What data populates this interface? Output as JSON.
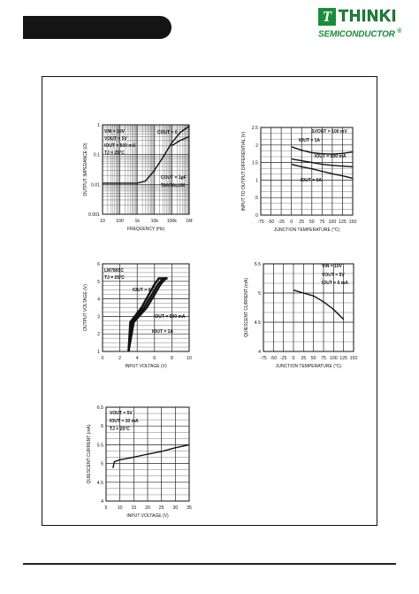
{
  "header": {
    "logo_text": "THINKI",
    "logo_sub": "SEMICONDUCTOR",
    "logo_reg": "®"
  },
  "chart_data": [
    {
      "id": "c1",
      "type": "line",
      "xlabel": "FREQUENCY (Hz)",
      "ylabel": "OUTPUT IMPEDANCE (Ω)",
      "xscale": "log",
      "yscale": "log",
      "xlim": [
        10,
        1000000
      ],
      "ylim": [
        0.001,
        1
      ],
      "xticks": [
        "10",
        "100",
        "1k",
        "10k",
        "100k",
        "1M"
      ],
      "yticks": [
        "0.001",
        "0.01",
        "0.1",
        "1"
      ],
      "grid": true,
      "annotations": [
        "VIN = 10V",
        "VOUT = 5V",
        "IOUT = 500 mA",
        "TJ = 25°C",
        "COUT = 0",
        "COUT = 1μF",
        "TANTALUM"
      ],
      "series": [
        {
          "x": [
            10,
            100,
            1000,
            3000,
            10000,
            30000,
            100000,
            300000,
            1000000
          ],
          "y": [
            0.011,
            0.011,
            0.011,
            0.013,
            0.03,
            0.08,
            0.25,
            0.55,
            0.9
          ]
        },
        {
          "x": [
            100000,
            300000,
            1000000
          ],
          "y": [
            0.2,
            0.3,
            0.4
          ]
        }
      ]
    },
    {
      "id": "c2",
      "type": "line",
      "xlabel": "JUNCTION TEMPERATURE (°C)",
      "ylabel": "INPUT TO OUTPUT DIFFERENTIAL (V)",
      "xlim": [
        -75,
        150
      ],
      "ylim": [
        0,
        2.5
      ],
      "xticks": [
        "-75",
        "-50",
        "-25",
        "0",
        "25",
        "50",
        "75",
        "100",
        "125",
        "150"
      ],
      "yticks": [
        "0",
        ".5",
        "1",
        "1.5",
        "2",
        "2.5"
      ],
      "grid": true,
      "annotations": [
        "ΔVOUT = 100 mV",
        "IOUT = 1A",
        "IOUT = 500 mA",
        "IOUT = 0A"
      ],
      "series": [
        {
          "name": "IOUT = 1A",
          "x": [
            0,
            25,
            50,
            75,
            100,
            125,
            150
          ],
          "y": [
            1.95,
            1.85,
            1.78,
            1.75,
            1.74,
            1.76,
            1.8
          ]
        },
        {
          "name": "IOUT = 500 mA",
          "x": [
            0,
            25,
            50,
            75,
            100,
            125,
            150
          ],
          "y": [
            1.6,
            1.55,
            1.5,
            1.45,
            1.42,
            1.4,
            1.38
          ]
        },
        {
          "name": "IOUT = 0A",
          "x": [
            0,
            25,
            50,
            75,
            100,
            125,
            150
          ],
          "y": [
            1.45,
            1.38,
            1.32,
            1.25,
            1.18,
            1.12,
            1.05
          ]
        }
      ]
    },
    {
      "id": "c3",
      "type": "line",
      "xlabel": "INPUT VOLTAGE (V)",
      "ylabel": "OUTPUT VOLTAGE (V)",
      "xlim": [
        0,
        10
      ],
      "ylim": [
        0,
        6
      ],
      "xticks": [
        "0",
        "2",
        "4",
        "6",
        "8",
        "10"
      ],
      "yticks": [
        "1",
        "2",
        "3",
        "4",
        "5",
        "6"
      ],
      "grid": true,
      "annotations": [
        "LM7805C",
        "TJ = 25°C",
        "IOUT = 0A",
        "IOUT = 500 mA",
        "IOUT = 1A"
      ],
      "series": [
        {
          "name": "IOUT = 0A",
          "x": [
            3,
            3.2,
            4.5,
            6,
            6.5,
            7.5
          ],
          "y": [
            0,
            2,
            3,
            4.6,
            5,
            5
          ]
        },
        {
          "name": "IOUT = 500 mA",
          "x": [
            3,
            3.4,
            4.8,
            6.4,
            7,
            7.5
          ],
          "y": [
            0,
            2,
            3,
            4.6,
            5,
            5
          ]
        },
        {
          "name": "IOUT = 1A",
          "x": [
            3,
            3.6,
            5.1,
            6.7,
            7.3,
            7.5
          ],
          "y": [
            0,
            2,
            3,
            4.6,
            5,
            5
          ]
        }
      ]
    },
    {
      "id": "c4",
      "type": "line",
      "xlabel": "JUNCTION TEMPERATURE (°C)",
      "ylabel": "QUIESCENT CURRENT (mA)",
      "xlim": [
        -75,
        150
      ],
      "ylim": [
        4,
        5.5
      ],
      "xticks": [
        "-75",
        "-50",
        "-25",
        "0",
        "25",
        "50",
        "75",
        "100",
        "125",
        "150"
      ],
      "yticks": [
        "4",
        "4.5",
        "5",
        "5.5"
      ],
      "grid": true,
      "annotations": [
        "VIN = 10V",
        "VOUT = 5V",
        "IOUT = 5 mA"
      ],
      "series": [
        {
          "x": [
            0,
            25,
            50,
            75,
            100,
            125
          ],
          "y": [
            5.05,
            5.0,
            4.95,
            4.85,
            4.72,
            4.55
          ]
        }
      ]
    },
    {
      "id": "c5",
      "type": "line",
      "xlabel": "INPUT VOLTAGE (V)",
      "ylabel": "QUIESCENT CURRENT (mA)",
      "xlim": [
        5,
        35
      ],
      "ylim": [
        4,
        6.5
      ],
      "xticks": [
        "5",
        "10",
        "15",
        "20",
        "25",
        "30",
        "35"
      ],
      "yticks": [
        "4",
        "4.5",
        "5",
        "5.5",
        "6",
        "6.5"
      ],
      "grid": true,
      "annotations": [
        "VOUT = 5V",
        "IOUT = 10 mA",
        "TJ = 25°C"
      ],
      "series": [
        {
          "x": [
            7.5,
            8,
            10,
            15,
            20,
            25,
            30,
            35
          ],
          "y": [
            4.88,
            5.05,
            5.1,
            5.17,
            5.25,
            5.32,
            5.42,
            5.5
          ]
        }
      ]
    }
  ]
}
